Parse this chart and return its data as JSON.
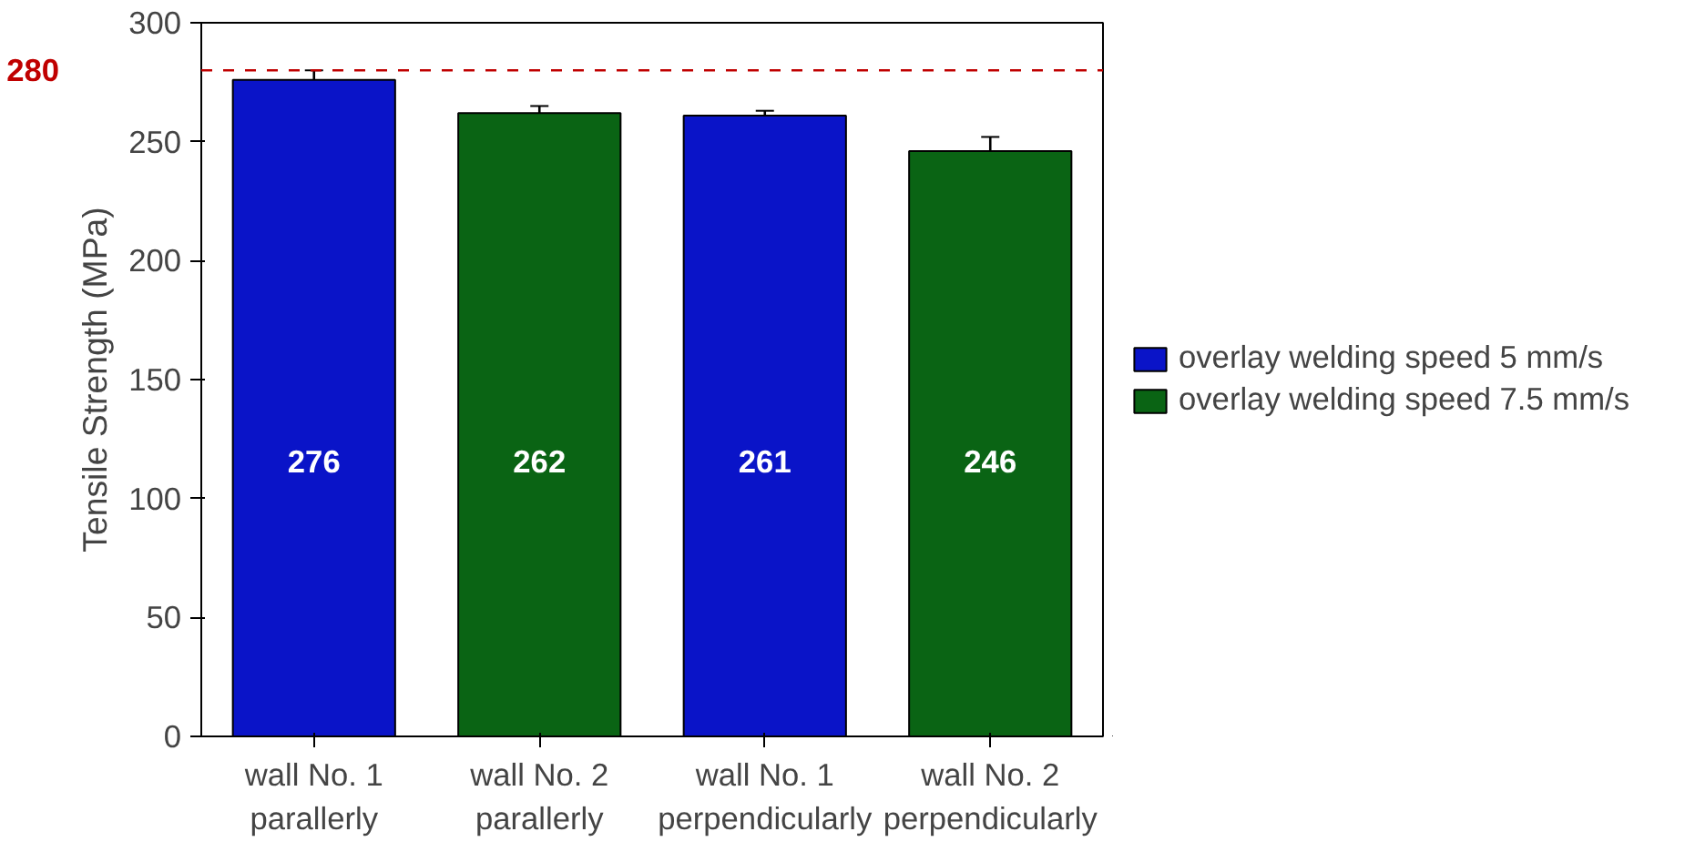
{
  "chart_data": {
    "type": "bar",
    "ylabel": "Tensile Strength (MPa)",
    "categories": [
      "wall No. 1\nparallerly",
      "wall No. 2\nparallerly",
      "wall No. 1\nperpendicularly",
      "wall No. 2\nperpendicularly"
    ],
    "series": [
      {
        "name": "overlay welding speed 5 mm/s",
        "color": "#0a14c8",
        "values": [
          276,
          null,
          261,
          null
        ],
        "errors": [
          4,
          null,
          2,
          null
        ]
      },
      {
        "name": "overlay welding speed 7.5 mm/s",
        "color": "#0a6414",
        "values": [
          null,
          262,
          null,
          246
        ],
        "errors": [
          null,
          3,
          null,
          6
        ]
      }
    ],
    "ylim": [
      0,
      300
    ],
    "yticks": [
      0,
      50,
      100,
      150,
      200,
      250,
      300
    ],
    "ref_lines": [
      {
        "axis": "y",
        "value": 280,
        "label": "280",
        "color": "#c00000",
        "line_style": "dashed"
      }
    ],
    "data_labels": true,
    "legend": "right",
    "grid": false
  }
}
